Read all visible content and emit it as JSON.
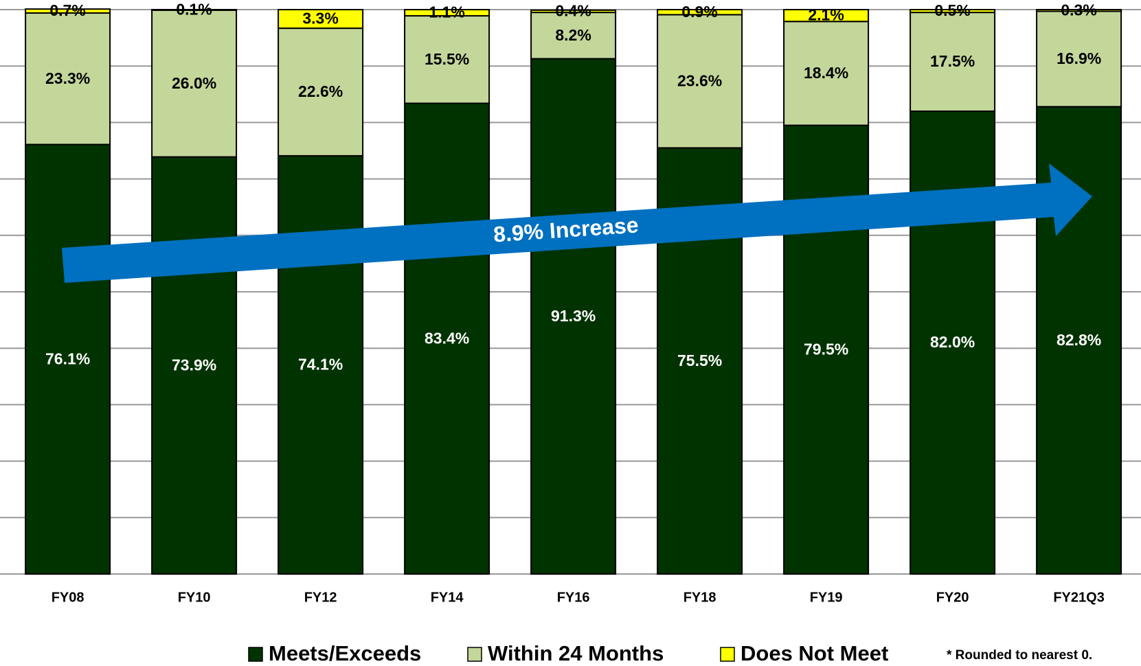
{
  "chart_data": {
    "type": "stacked_bar",
    "categories": [
      "FY08",
      "FY10",
      "FY12",
      "FY14",
      "FY16",
      "FY18",
      "FY19",
      "FY20",
      "FY21Q3"
    ],
    "series": [
      {
        "name": "Meets/Exceeds",
        "color": "#003300",
        "values": [
          76.1,
          73.9,
          74.1,
          83.4,
          91.3,
          75.5,
          79.5,
          82.0,
          82.8
        ],
        "value_labels": [
          "76.1%",
          "73.9%",
          "74.1%",
          "83.4%",
          "91.3%",
          "75.5%",
          "79.5%",
          "82.0%",
          "82.8%"
        ]
      },
      {
        "name": "Within 24 Months",
        "color": "#c4d79b",
        "values": [
          23.3,
          26.0,
          22.6,
          15.5,
          8.2,
          23.6,
          18.4,
          17.5,
          16.9
        ],
        "value_labels": [
          "23.3%",
          "26.0%",
          "22.6%",
          "15.5%",
          "8.2%",
          "23.6%",
          "18.4%",
          "17.5%",
          "16.9%"
        ]
      },
      {
        "name": "Does Not Meet",
        "color": "#ffff00",
        "values": [
          0.7,
          0.1,
          3.3,
          1.1,
          0.4,
          0.9,
          2.1,
          0.5,
          0.3
        ],
        "value_labels": [
          "0.7%",
          "0.1%",
          "3.3%",
          "1.1%",
          "0.4%",
          "0.9%",
          "2.1%",
          "0.5%",
          "0.3%"
        ]
      }
    ],
    "ylim": [
      0,
      100
    ],
    "yticks": [
      0,
      10,
      20,
      30,
      40,
      50,
      60,
      70,
      80,
      90,
      100
    ],
    "grid": true,
    "annotations": [
      "8.9% Increase",
      "* Rounded to nearest  0."
    ]
  }
}
